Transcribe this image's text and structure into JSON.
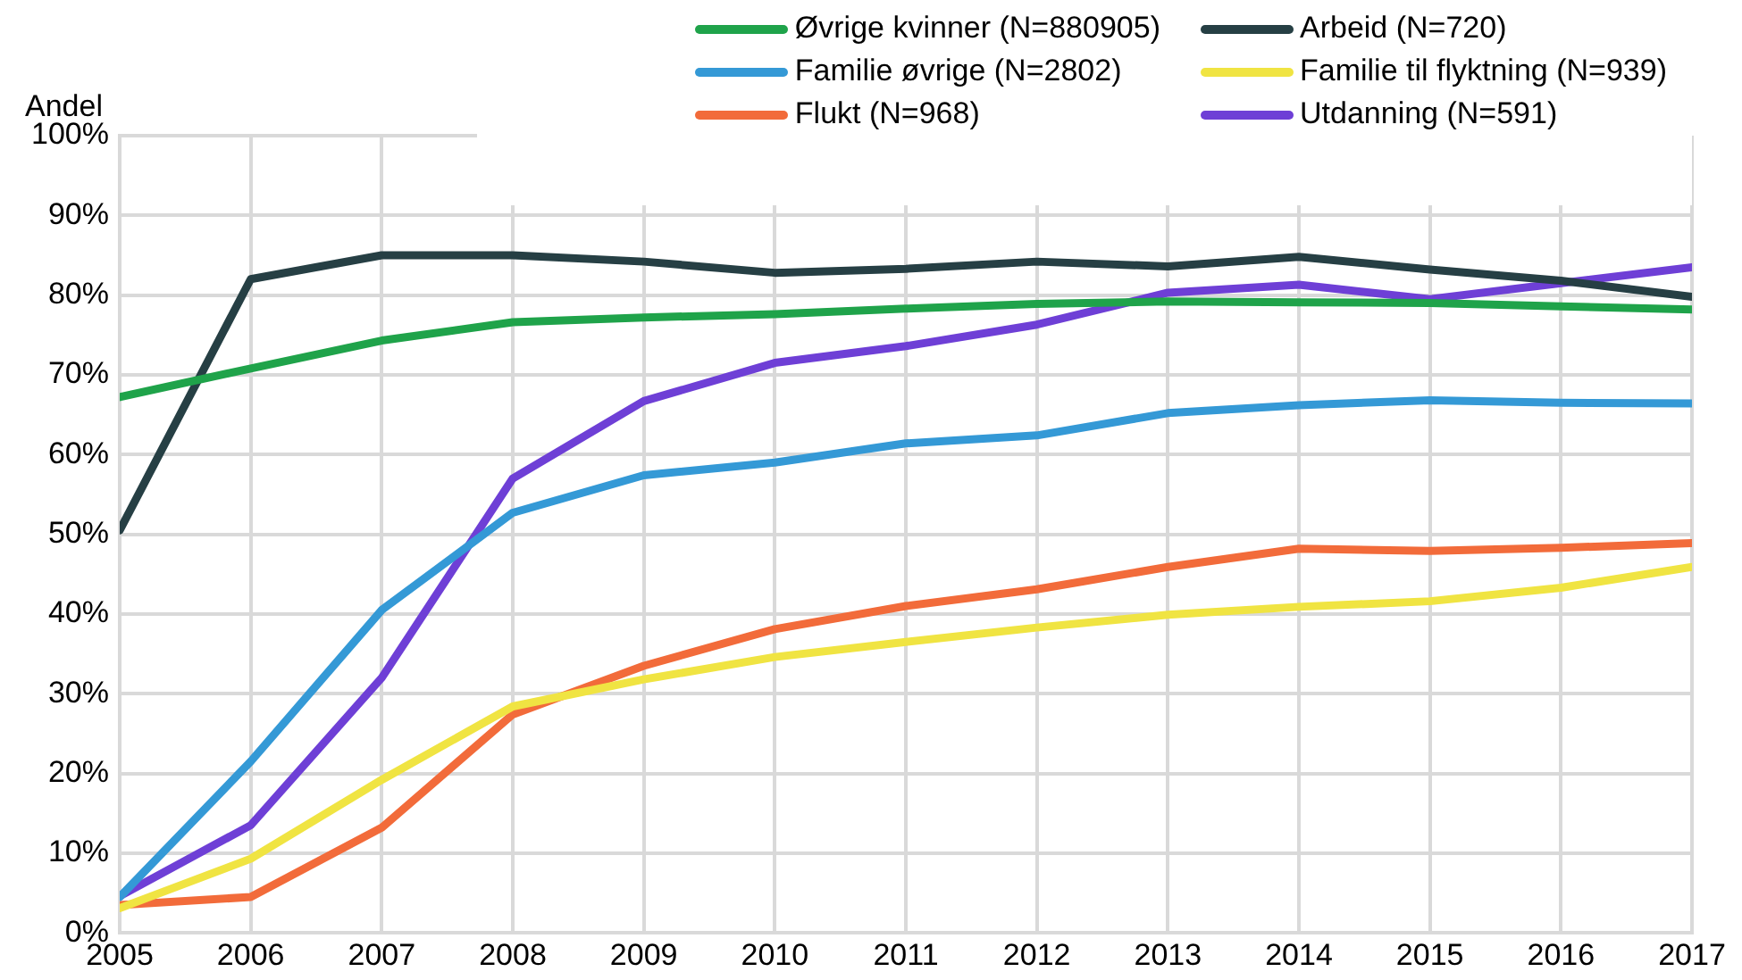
{
  "chart_data": {
    "type": "line",
    "ylabel": "Andel",
    "x": [
      2005,
      2006,
      2007,
      2008,
      2009,
      2010,
      2011,
      2012,
      2013,
      2014,
      2015,
      2016,
      2017
    ],
    "xlim": [
      2005,
      2017
    ],
    "xticks": [
      2005,
      2006,
      2007,
      2008,
      2009,
      2010,
      2011,
      2012,
      2013,
      2014,
      2015,
      2016,
      2017
    ],
    "ylim": [
      0,
      100
    ],
    "yticks": [
      {
        "value": 0,
        "label": "0%"
      },
      {
        "value": 10,
        "label": "10%"
      },
      {
        "value": 20,
        "label": "20%"
      },
      {
        "value": 30,
        "label": "30%"
      },
      {
        "value": 40,
        "label": "40%"
      },
      {
        "value": 50,
        "label": "50%"
      },
      {
        "value": 60,
        "label": "60%"
      },
      {
        "value": 70,
        "label": "70%"
      },
      {
        "value": 80,
        "label": "80%"
      },
      {
        "value": 90,
        "label": "90%"
      },
      {
        "value": 100,
        "label": "100%"
      }
    ],
    "grid": true,
    "legend": "top right",
    "marker": "none",
    "line_style": "solid",
    "series": [
      {
        "name": "Øvrige kvinner (N=880905)",
        "color": "#1fa34a",
        "values": [
          67.2,
          70.8,
          74.3,
          76.6,
          77.2,
          77.6,
          78.3,
          78.9,
          79.2,
          79.1,
          79.0,
          78.6,
          78.2
        ]
      },
      {
        "name": "Arbeid (N=720)",
        "color": "#263f44",
        "values": [
          50.5,
          82.0,
          85.0,
          85.0,
          84.2,
          82.8,
          83.3,
          84.2,
          83.6,
          84.8,
          83.2,
          81.8,
          79.8
        ]
      },
      {
        "name": "Familie øvrige (N=2802)",
        "color": "#3499d6",
        "values": [
          4.5,
          21.5,
          40.5,
          52.7,
          57.4,
          59.0,
          61.4,
          62.4,
          65.2,
          66.2,
          66.8,
          66.5,
          66.4
        ]
      },
      {
        "name": "Familie til flyktning (N=939)",
        "color": "#f0e442",
        "values": [
          3.1,
          9.3,
          19.2,
          28.4,
          31.8,
          34.6,
          36.5,
          38.3,
          39.9,
          40.9,
          41.6,
          43.3,
          45.9
        ]
      },
      {
        "name": "Flukt (N=968)",
        "color": "#f26b3a",
        "values": [
          3.5,
          4.5,
          13.2,
          27.4,
          33.5,
          38.1,
          41.0,
          43.1,
          45.9,
          48.2,
          47.9,
          48.3,
          48.9
        ]
      },
      {
        "name": "Utdanning (N=591)",
        "color": "#6e3fd6",
        "values": [
          4.6,
          13.5,
          32.0,
          57.0,
          66.7,
          71.5,
          73.6,
          76.3,
          80.3,
          81.3,
          79.5,
          81.5,
          83.5
        ]
      }
    ]
  }
}
